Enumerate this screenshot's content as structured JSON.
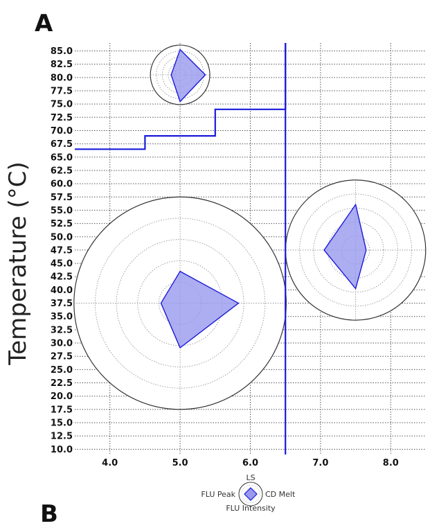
{
  "panel_label": "A",
  "next_panel_label": "B",
  "chart_data": {
    "type": "line",
    "ylabel": "Temperature (°C)",
    "xlabel": "",
    "xlim": [
      3.5,
      8.5
    ],
    "ylim": [
      9.0,
      86.5
    ],
    "xticks": [
      4.0,
      5.0,
      6.0,
      7.0,
      8.0
    ],
    "xtick_labels": [
      "4.0",
      "5.0",
      "6.0",
      "7.0",
      "8.0"
    ],
    "yticks": [
      10.0,
      12.5,
      15.0,
      17.5,
      20.0,
      22.5,
      25.0,
      27.5,
      30.0,
      32.5,
      35.0,
      37.5,
      40.0,
      42.5,
      45.0,
      47.5,
      50.0,
      52.5,
      55.0,
      57.5,
      60.0,
      62.5,
      65.0,
      67.5,
      70.0,
      72.5,
      75.0,
      77.5,
      80.0,
      82.5,
      85.0
    ],
    "ytick_labels": [
      "10.0",
      "12.5",
      "15.0",
      "17.5",
      "20.0",
      "22.5",
      "25.0",
      "27.5",
      "30.0",
      "32.5",
      "35.0",
      "37.5",
      "40.0",
      "42.5",
      "45.0",
      "47.5",
      "50.0",
      "52.5",
      "55.0",
      "57.5",
      "60.0",
      "62.5",
      "65.0",
      "67.5",
      "70.0",
      "72.5",
      "75.0",
      "77.5",
      "80.0",
      "82.5",
      "85.0"
    ],
    "grid": true,
    "step_line": {
      "color": "#1a1adb",
      "points": [
        [
          3.5,
          66.5
        ],
        [
          4.5,
          66.5
        ],
        [
          4.5,
          69.0
        ],
        [
          5.5,
          69.0
        ],
        [
          5.5,
          74.0
        ],
        [
          6.5,
          74.0
        ],
        [
          6.5,
          86.5
        ]
      ]
    },
    "vertical_line": {
      "x": 6.5,
      "from": 9.0,
      "to": 86.5,
      "color": "#1a1adb"
    },
    "radar_glyphs": [
      {
        "center": [
          5.0,
          80.5
        ],
        "radius": 5.6,
        "values": {
          "top": 0.85,
          "right": 0.85,
          "bottom": 0.9,
          "left": 0.3
        }
      },
      {
        "center": [
          5.0,
          37.5
        ],
        "radius": 20.0,
        "values": {
          "top": 0.3,
          "right": 0.55,
          "bottom": 0.42,
          "left": 0.18
        }
      },
      {
        "center": [
          7.5,
          47.5
        ],
        "radius": 13.2,
        "values": {
          "top": 0.65,
          "right": 0.15,
          "bottom": 0.55,
          "left": 0.45
        }
      }
    ],
    "fill_color": "#9999ee",
    "edge_color": "#1a1adb",
    "legend": {
      "axes": {
        "top": "LS",
        "right": "CD Melt",
        "bottom": "FLU Intensity",
        "left": "FLU Peak"
      },
      "placement": "bottom-center"
    }
  }
}
